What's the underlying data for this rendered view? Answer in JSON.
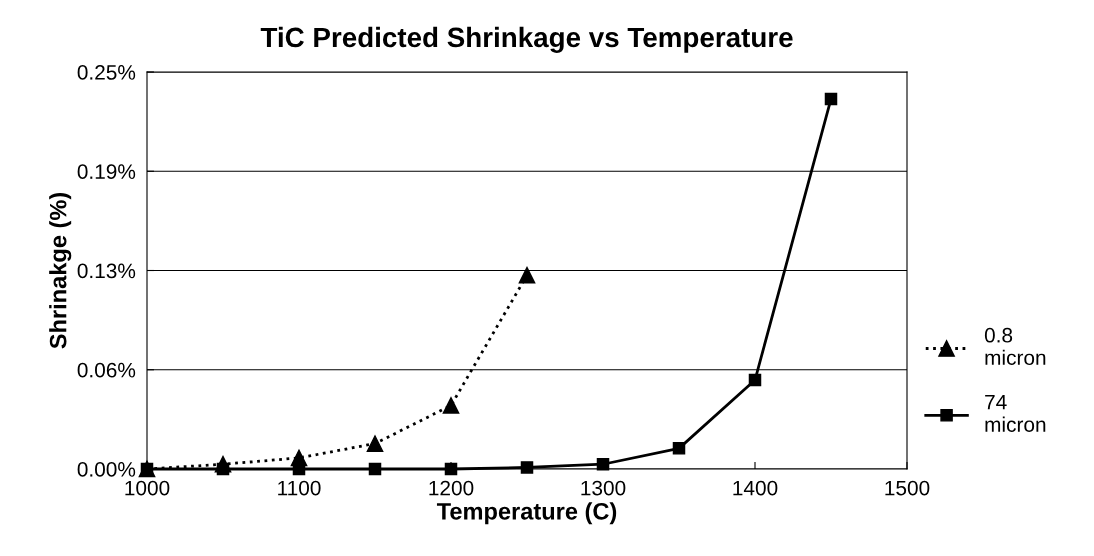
{
  "chart_data": {
    "type": "line",
    "title": "TiC Predicted Shrinkage vs Temperature",
    "xlabel": "Temperature (C)",
    "ylabel": "Shrinakge (%)",
    "x": [
      1000,
      1050,
      1100,
      1150,
      1200,
      1250,
      1300,
      1350,
      1400,
      1450
    ],
    "series": [
      {
        "name": "0.8\nmicron",
        "color": "#000000",
        "marker": "triangle",
        "line_style": "dotted",
        "x": [
          1000,
          1050,
          1100,
          1150,
          1200,
          1250
        ],
        "values": [
          0.0,
          0.003,
          0.007,
          0.016,
          0.04,
          0.122
        ]
      },
      {
        "name": "74\nmicron",
        "color": "#000000",
        "marker": "square",
        "line_style": "solid",
        "values": [
          0.0,
          0.0,
          0.0,
          0.0,
          0.0,
          0.001,
          0.003,
          0.013,
          0.056,
          0.233
        ]
      }
    ],
    "xlim": [
      1000,
      1500
    ],
    "xticks": [
      1000,
      1100,
      1200,
      1300,
      1400,
      1500
    ],
    "ylim": [
      0,
      0.25
    ],
    "yticks": [
      {
        "value": 0,
        "label": "0.00%"
      },
      {
        "value": 0.0625,
        "label": "0.06%"
      },
      {
        "value": 0.125,
        "label": "0.13%"
      },
      {
        "value": 0.1875,
        "label": "0.19%"
      },
      {
        "value": 0.25,
        "label": "0.25%"
      }
    ],
    "grid": "y",
    "legend": "right"
  }
}
